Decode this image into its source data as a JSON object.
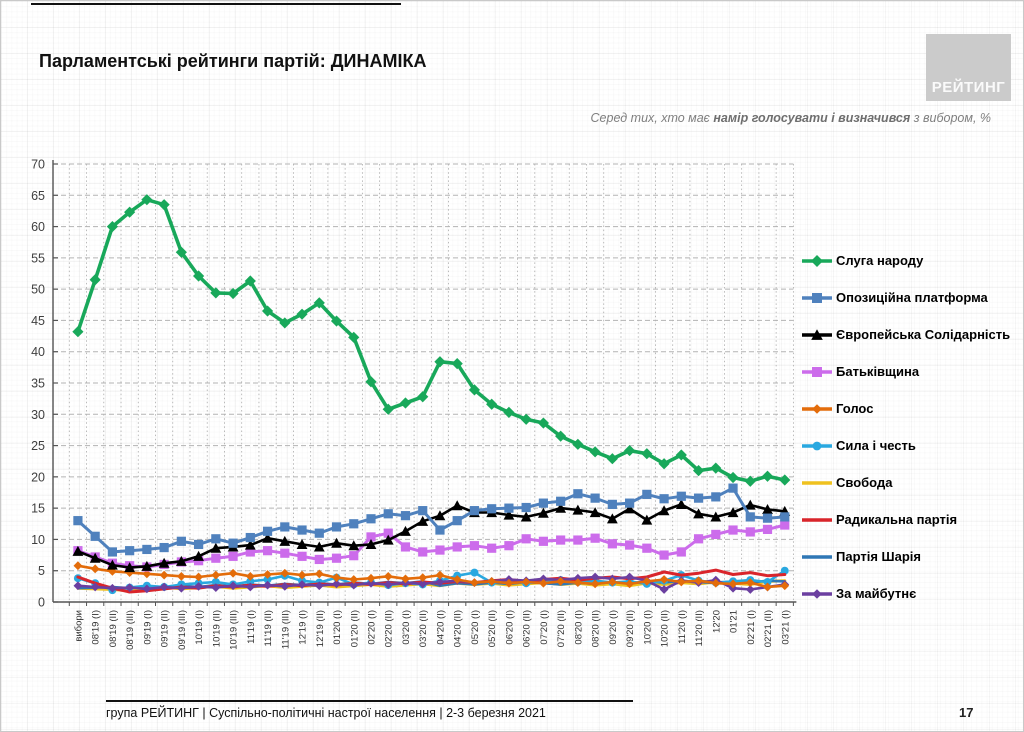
{
  "page": {
    "title": "Парламентські рейтинги партій: ДИНАМІКА",
    "subtitle_prefix": "Серед тих, хто має ",
    "subtitle_bold": "намір голосувати і визначився",
    "subtitle_suffix": " з вибором, %",
    "footer": "група РЕЙТИНГ | Суспільно-політичні настрої населення  | 2-3 березня 2021",
    "page_number": "17",
    "logo_text": "РЕЙТИНГ"
  },
  "chart_data": {
    "type": "line",
    "title": "Парламентські рейтинги партій: ДИНАМІКА",
    "subtitle": "Серед тих, хто має намір голосувати і визначився з вибором, %",
    "xlabel": "",
    "ylabel": "",
    "ylim": [
      0,
      70
    ],
    "y_ticks": [
      0,
      5,
      10,
      15,
      20,
      25,
      30,
      35,
      40,
      45,
      50,
      55,
      60,
      65,
      70
    ],
    "grid": true,
    "legend_position": "right",
    "categories": [
      "вибори",
      "08'19 (I)",
      "08'19 (II)",
      "08'19 (III)",
      "09'19 (I)",
      "09'19 (II)",
      "09'19 (III)",
      "10'19 (I)",
      "10'19 (II)",
      "10'19 (III)",
      "11'19 (I)",
      "11'19 (II)",
      "11'19 (III)",
      "12'19 (I)",
      "12'19 (II)",
      "01'20 (I)",
      "01'20 (II)",
      "02'20 (I)",
      "02'20 (II)",
      "03'20 (I)",
      "03'20 (II)",
      "04'20 (I)",
      "04'20 (II)",
      "05'20 (I)",
      "05'20 (II)",
      "06'20 (I)",
      "06'20 (II)",
      "07'20 (I)",
      "07'20 (II)",
      "08'20 (I)",
      "08'20 (II)",
      "09'20 (I)",
      "09'20 (II)",
      "10'20 (I)",
      "10'20 (II)",
      "11'20 (I)",
      "11'20 (II)",
      "12'20",
      "01'21",
      "02'21 (I)",
      "02'21 (II)",
      "03'21 (I)"
    ],
    "series": [
      {
        "name": "Слуга народу",
        "color": "#18A85A",
        "marker": "diamond",
        "values": [
          43.2,
          51.5,
          60.0,
          62.3,
          64.3,
          63.5,
          55.9,
          52.1,
          49.4,
          49.3,
          51.3,
          46.5,
          44.6,
          46.0,
          47.8,
          44.9,
          42.3,
          35.2,
          30.8,
          31.8,
          32.8,
          38.4,
          38.1,
          33.9,
          31.6,
          30.3,
          29.2,
          28.6,
          26.5,
          25.2,
          24.0,
          22.9,
          24.2,
          23.7,
          22.1,
          23.5,
          21.0,
          21.4,
          19.9,
          19.3,
          20.1,
          19.5
        ]
      },
      {
        "name": "Опозиційна платформа",
        "color": "#4F81BD",
        "marker": "square",
        "values": [
          13.0,
          10.5,
          8.0,
          8.2,
          8.4,
          8.7,
          9.7,
          9.2,
          10.1,
          9.4,
          10.3,
          11.3,
          12.0,
          11.5,
          11.0,
          12.0,
          12.5,
          13.3,
          14.1,
          13.8,
          14.6,
          11.5,
          13.0,
          14.6,
          14.9,
          15.0,
          15.1,
          15.8,
          16.1,
          17.3,
          16.6,
          15.6,
          15.8,
          17.2,
          16.5,
          16.9,
          16.6,
          16.8,
          18.2,
          13.6,
          13.4,
          13.6
        ]
      },
      {
        "name": "Європейська Солідарність",
        "color": "#000000",
        "marker": "triangle",
        "values": [
          8.1,
          7.0,
          5.9,
          5.5,
          5.7,
          6.2,
          6.5,
          7.3,
          8.6,
          8.8,
          9.1,
          10.2,
          9.7,
          9.2,
          8.8,
          9.4,
          9.0,
          9.2,
          9.9,
          11.3,
          12.9,
          13.8,
          15.4,
          14.3,
          14.3,
          13.9,
          13.6,
          14.2,
          15.0,
          14.7,
          14.3,
          13.3,
          14.9,
          13.1,
          14.6,
          15.6,
          14.1,
          13.6,
          14.3,
          15.5,
          14.8,
          14.5
        ]
      },
      {
        "name": "Батьківщина",
        "color": "#CC6CEB",
        "marker": "square",
        "values": [
          8.2,
          7.2,
          6.2,
          5.8,
          5.6,
          6.0,
          6.4,
          6.6,
          7.0,
          7.3,
          8.0,
          8.2,
          7.8,
          7.3,
          6.8,
          7.0,
          7.4,
          10.4,
          11.0,
          8.8,
          8.0,
          8.3,
          8.8,
          9.0,
          8.6,
          9.0,
          10.1,
          9.7,
          9.9,
          9.9,
          10.2,
          9.3,
          9.1,
          8.6,
          7.5,
          8.0,
          10.1,
          10.8,
          11.5,
          11.2,
          11.6,
          12.3
        ]
      },
      {
        "name": "Голос",
        "color": "#E36C0A",
        "marker": "diamond",
        "values": [
          5.8,
          5.3,
          4.9,
          4.7,
          4.5,
          4.3,
          4.1,
          4.0,
          4.3,
          4.6,
          4.1,
          4.4,
          4.6,
          4.3,
          4.5,
          3.9,
          3.6,
          3.8,
          4.1,
          3.7,
          3.9,
          4.3,
          3.6,
          3.1,
          3.3,
          3.0,
          3.2,
          3.0,
          3.3,
          3.1,
          2.9,
          3.2,
          2.9,
          3.3,
          3.6,
          3.2,
          3.4,
          3.0,
          2.9,
          3.1,
          2.4,
          2.6
        ]
      },
      {
        "name": "Сила і честь",
        "color": "#29A8E0",
        "marker": "circle",
        "values": [
          3.8,
          3.0,
          1.9,
          2.3,
          2.6,
          2.4,
          2.8,
          3.0,
          3.2,
          2.8,
          3.3,
          3.6,
          4.2,
          3.4,
          3.1,
          3.9,
          2.8,
          3.1,
          2.7,
          3.0,
          2.8,
          3.4,
          4.2,
          4.7,
          3.1,
          3.3,
          3.0,
          3.3,
          3.5,
          3.2,
          3.4,
          3.1,
          3.3,
          2.9,
          3.4,
          4.3,
          3.4,
          3.1,
          3.3,
          3.5,
          3.2,
          5.0
        ]
      },
      {
        "name": "Свобода",
        "color": "#EFC11E",
        "marker": "none",
        "values": [
          2.2,
          2.1,
          2.0,
          1.8,
          2.2,
          2.4,
          2.1,
          2.3,
          2.5,
          2.2,
          2.4,
          2.6,
          2.3,
          2.5,
          2.7,
          2.4,
          2.6,
          2.8,
          2.5,
          2.7,
          2.9,
          2.6,
          3.0,
          2.8,
          3.0,
          2.7,
          2.9,
          3.1,
          2.8,
          3.0,
          2.7,
          2.9,
          2.6,
          3.0,
          2.8,
          3.1,
          2.9,
          3.2,
          3.0,
          2.8,
          3.3,
          3.4
        ]
      },
      {
        "name": "Радикальна партія",
        "color": "#D9252B",
        "marker": "none",
        "values": [
          4.0,
          3.0,
          2.2,
          1.6,
          1.8,
          2.1,
          2.4,
          2.2,
          2.6,
          2.4,
          2.7,
          2.5,
          2.8,
          2.6,
          2.9,
          2.7,
          3.0,
          2.8,
          3.1,
          2.9,
          3.2,
          3.0,
          3.3,
          3.1,
          3.4,
          3.6,
          3.3,
          3.6,
          3.8,
          3.5,
          3.8,
          4.0,
          3.7,
          4.0,
          4.8,
          4.3,
          4.6,
          5.1,
          4.4,
          4.7,
          4.2,
          4.4
        ]
      },
      {
        "name": "Партія Шарія",
        "color": "#2E77B5",
        "marker": "none",
        "values": [
          2.2,
          2.3,
          2.4,
          2.2,
          2.5,
          2.3,
          2.6,
          2.4,
          2.7,
          2.5,
          2.8,
          2.6,
          2.9,
          2.7,
          3.0,
          2.8,
          3.1,
          2.9,
          3.2,
          3.0,
          3.3,
          2.6,
          3.0,
          2.8,
          3.1,
          2.9,
          3.2,
          3.0,
          2.8,
          3.1,
          2.9,
          3.2,
          3.0,
          3.3,
          3.1,
          3.4,
          3.2,
          3.0,
          3.3,
          3.1,
          3.4,
          3.3
        ]
      },
      {
        "name": "За майбутнє",
        "color": "#6B3FA0",
        "marker": "diamond",
        "values": [
          2.6,
          2.4,
          2.2,
          2.3,
          2.1,
          2.4,
          2.2,
          2.5,
          2.3,
          2.6,
          2.4,
          2.7,
          2.5,
          2.8,
          2.6,
          2.9,
          2.7,
          3.0,
          2.8,
          3.1,
          2.9,
          3.2,
          3.4,
          3.1,
          3.3,
          3.6,
          3.4,
          3.7,
          3.5,
          3.8,
          4.0,
          3.7,
          4.0,
          3.4,
          2.0,
          3.4,
          3.1,
          3.5,
          2.2,
          2.0,
          2.4,
          2.8
        ]
      }
    ]
  }
}
